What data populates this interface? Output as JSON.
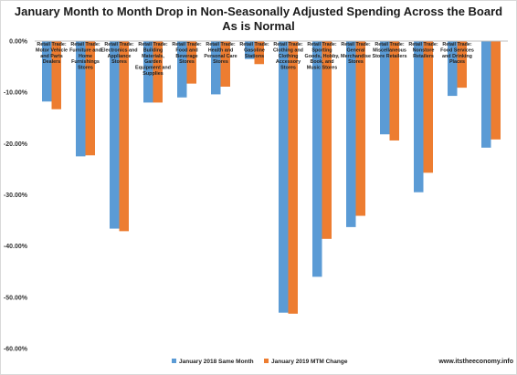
{
  "chart_data": {
    "type": "bar",
    "title": "January Month to Month Drop in Non-Seasonally Adjusted Spending Across the Board",
    "subtitle": "As is Normal",
    "categories": [
      "Retail Trade: Motor Vehicle and Parts Dealers",
      "Retail Trade: Furniture and Home Furnishings Stores",
      "Retail Trade: Electronics and Appliance Stores",
      "Retail Trade: Building Materials, Garden Equipment and Supplies",
      "Retail Trade: Food and Beverage Stores",
      "Retail Trade: Health and Personal Care Stores",
      "Retail Trade: Gasoline Stations",
      "Retail Trade: Clothing and Clothing Accessory Stores",
      "Retail Trade: Sporting Goods, Hobby, Book, and Music Stores",
      "Retail Trade: General Merchandise Stores",
      "Retail Trade: Miscellaneous Store Retailers",
      "Retail Trade: Nonstore Retailers",
      "Retail Trade: Food Services and Drinking Places",
      ""
    ],
    "category_label_lines": [
      [
        "Retail Trade:",
        "Motor Vehicle",
        "and Parts",
        "Dealers"
      ],
      [
        "Retail Trade:",
        "Furniture and",
        "Home",
        "Furnishings",
        "Stores"
      ],
      [
        "Retail Trade:",
        "Electronics and",
        "Appliance",
        "Stores"
      ],
      [
        "Retail Trade:",
        "Building",
        "Materials,",
        "Garden",
        "Equipment and",
        "Supplies"
      ],
      [
        "Retail Trade:",
        "Food and",
        "Beverage",
        "Stores"
      ],
      [
        "Retail Trade:",
        "Health and",
        "Personal Care",
        "Stores"
      ],
      [
        "Retail Trade:",
        "Gasoline",
        "Stations"
      ],
      [
        "Retail Trade:",
        "Clothing and",
        "Clothing",
        "Accessory",
        "Stores"
      ],
      [
        "Retail Trade:",
        "Sporting",
        "Goods, Hobby,",
        "Book, and",
        "Music Stores"
      ],
      [
        "Retail Trade:",
        "General",
        "Merchandise",
        "Stores"
      ],
      [
        "Retail Trade:",
        "Miscellaneous",
        "Store Retailers"
      ],
      [
        "Retail Trade:",
        "Nonstore",
        "Retailers"
      ],
      [
        "Retail Trade:",
        "Food Services",
        "and Drinking",
        "Places"
      ],
      []
    ],
    "series": [
      {
        "name": "January 2018 Same Month",
        "color": "#5b9bd5",
        "values": [
          -11.8,
          -22.5,
          -36.6,
          -12.0,
          -11.0,
          -10.4,
          -3.5,
          -53.0,
          -46.0,
          -36.3,
          -18.2,
          -29.5,
          -10.7,
          -20.8
        ]
      },
      {
        "name": "January 2019 MTM Change",
        "color": "#ed7d31",
        "values": [
          -13.3,
          -22.3,
          -37.1,
          -12.0,
          -8.3,
          -8.9,
          -4.5,
          -53.2,
          -38.6,
          -34.1,
          -19.4,
          -25.7,
          -9.1,
          -19.2
        ]
      }
    ],
    "ylim": [
      -60,
      0
    ],
    "yticks": [
      0,
      -10,
      -20,
      -30,
      -40,
      -50,
      -60
    ],
    "ytick_labels": [
      "0.00%",
      "-10.00%",
      "-20.00%",
      "-30.00%",
      "-40.00%",
      "-50.00%",
      "-60.00%"
    ],
    "xlabel": "",
    "ylabel": "",
    "grid": false,
    "legend_position": "bottom"
  },
  "credit": "www.itstheeconomy.info",
  "colors": {
    "axis": "#bfbfbf",
    "frame": "#d9d9d9",
    "text": "#222222"
  }
}
